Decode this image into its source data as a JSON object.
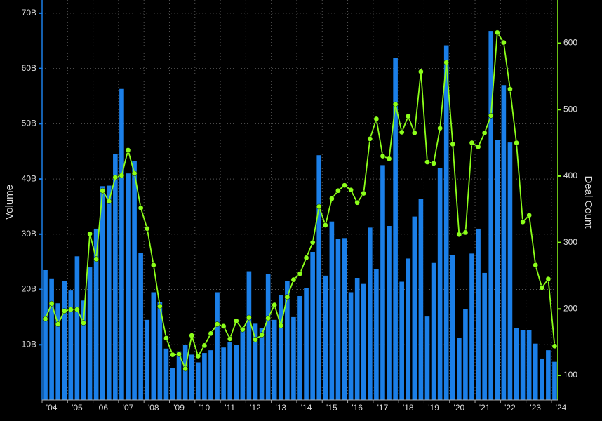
{
  "chart_data": {
    "type": "bar_line",
    "y_label": "Volume",
    "y2_label": "Deal Count",
    "categories": [
      "'04",
      null,
      null,
      null,
      "'05",
      null,
      null,
      null,
      "'06",
      null,
      null,
      null,
      "'07",
      null,
      null,
      null,
      "'08",
      null,
      null,
      null,
      "'09",
      null,
      null,
      null,
      "'10",
      null,
      null,
      null,
      "'11",
      null,
      null,
      null,
      "'12",
      null,
      null,
      null,
      "'13",
      null,
      null,
      null,
      "'14",
      null,
      null,
      null,
      "'15",
      null,
      null,
      null,
      "'16",
      null,
      null,
      null,
      "'17",
      null,
      null,
      null,
      "'18",
      null,
      null,
      null,
      "'19",
      null,
      null,
      null,
      "'20",
      null,
      null,
      null,
      "'21",
      null,
      null,
      null,
      "'22",
      null,
      null,
      null,
      "'23",
      null,
      null,
      null,
      "'24"
    ],
    "series": [
      {
        "type": "bar",
        "color": "#1b7fe8",
        "values": [
          23.5,
          22.0,
          17.5,
          21.5,
          19.8,
          26.0,
          18.0,
          24.0,
          31.0,
          38.7,
          38.8,
          44.5,
          56.3,
          41.0,
          43.2,
          26.6,
          14.5,
          19.5,
          17.7,
          9.3,
          5.8,
          8.8,
          10.0,
          8.2,
          6.8,
          8.5,
          9.0,
          19.5,
          9.5,
          10.5,
          10.0,
          13.0,
          23.3,
          13.8,
          13.0,
          22.8,
          14.5,
          19.0,
          21.5,
          15.0,
          18.8,
          20.2,
          26.8,
          44.3,
          22.5,
          32.3,
          29.2,
          29.3,
          19.5,
          22.1,
          21.0,
          31.2,
          23.7,
          42.5,
          31.5,
          61.9,
          21.4,
          25.6,
          33.2,
          36.4,
          15.1,
          24.8,
          42.0,
          64.2,
          26.2,
          11.3,
          16.5,
          26.5,
          31.0,
          23.0,
          66.8,
          47.0,
          57.0,
          46.6,
          13.0,
          12.6,
          12.7,
          10.2,
          7.5,
          9.0,
          6.9
        ]
      },
      {
        "type": "line",
        "axis": "y2",
        "color": "#8cff1a",
        "values": [
          185,
          208,
          177,
          197,
          199,
          199,
          179,
          313,
          275,
          378,
          362,
          398,
          401,
          439,
          404,
          352,
          321,
          266,
          204,
          156,
          131,
          132,
          110,
          160,
          129,
          145,
          163,
          177,
          174,
          155,
          182,
          169,
          187,
          154,
          161,
          186,
          206,
          175,
          218,
          244,
          253,
          277,
          300,
          354,
          326,
          366,
          378,
          386,
          379,
          360,
          374,
          456,
          486,
          430,
          426,
          508,
          466,
          490,
          465,
          557,
          421,
          419,
          472,
          571,
          448,
          312,
          315,
          450,
          444,
          465,
          491,
          616,
          601,
          531,
          450,
          331,
          341,
          266,
          232,
          245,
          144
        ]
      }
    ],
    "ylim": [
      0,
      72.4
    ],
    "yticks": [
      {
        "value": 10,
        "label": "10B"
      },
      {
        "value": 20,
        "label": "20B"
      },
      {
        "value": 30,
        "label": "30B"
      },
      {
        "value": 40,
        "label": "40B"
      },
      {
        "value": 50,
        "label": "50B"
      },
      {
        "value": 60,
        "label": "60B"
      },
      {
        "value": 70,
        "label": "70B"
      }
    ],
    "y2lim": [
      63,
      665
    ],
    "y2ticks": [
      100,
      200,
      300,
      400,
      500,
      600
    ],
    "grid": true
  }
}
